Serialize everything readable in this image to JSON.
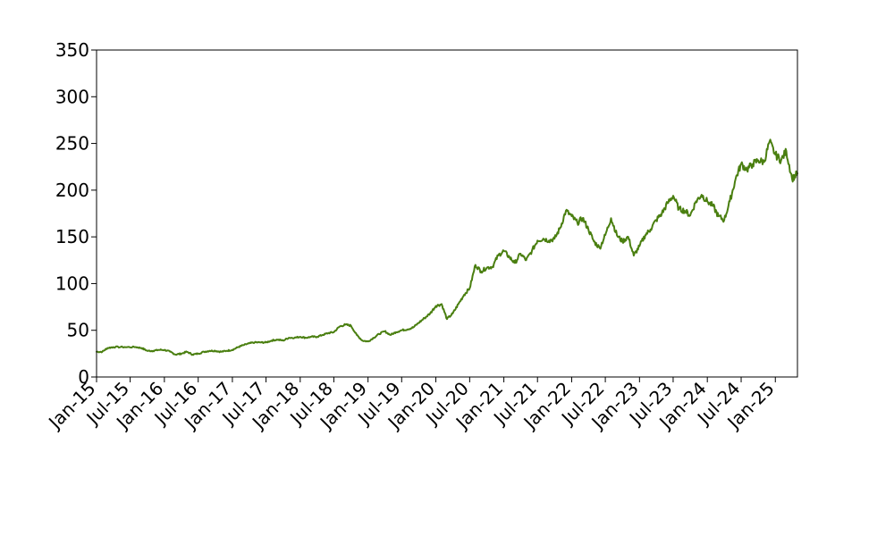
{
  "chart_data": {
    "type": "line",
    "title": "",
    "xlabel": "",
    "ylabel": "",
    "x_range": [
      "2015-01-01",
      "2025-04-30"
    ],
    "ylim": [
      0,
      350
    ],
    "y_ticks": [
      0,
      50,
      100,
      150,
      200,
      250,
      300,
      350
    ],
    "x_ticks": [
      {
        "date": "2015-01-01",
        "label": "Jan-15"
      },
      {
        "date": "2015-07-01",
        "label": "Jul-15"
      },
      {
        "date": "2016-01-01",
        "label": "Jan-16"
      },
      {
        "date": "2016-07-01",
        "label": "Jul-16"
      },
      {
        "date": "2017-01-01",
        "label": "Jan-17"
      },
      {
        "date": "2017-07-01",
        "label": "Jul-17"
      },
      {
        "date": "2018-01-01",
        "label": "Jan-18"
      },
      {
        "date": "2018-07-01",
        "label": "Jul-18"
      },
      {
        "date": "2019-01-01",
        "label": "Jan-19"
      },
      {
        "date": "2019-07-01",
        "label": "Jul-19"
      },
      {
        "date": "2020-01-01",
        "label": "Jan-20"
      },
      {
        "date": "2020-07-01",
        "label": "Jul-20"
      },
      {
        "date": "2021-01-01",
        "label": "Jan-21"
      },
      {
        "date": "2021-07-01",
        "label": "Jul-21"
      },
      {
        "date": "2022-01-01",
        "label": "Jan-22"
      },
      {
        "date": "2022-07-01",
        "label": "Jul-22"
      },
      {
        "date": "2023-01-01",
        "label": "Jan-23"
      },
      {
        "date": "2023-07-01",
        "label": "Jul-23"
      },
      {
        "date": "2024-01-01",
        "label": "Jan-24"
      },
      {
        "date": "2024-07-01",
        "label": "Jul-24"
      },
      {
        "date": "2025-01-01",
        "label": "Jan-25"
      }
    ],
    "grid": false,
    "legend": "none",
    "series": [
      {
        "color": "#4a7f10",
        "points": [
          [
            "2015-01-01",
            27
          ],
          [
            "2015-02-01",
            27
          ],
          [
            "2015-03-01",
            31
          ],
          [
            "2015-04-01",
            32
          ],
          [
            "2015-06-01",
            32
          ],
          [
            "2015-08-01",
            32
          ],
          [
            "2015-09-01",
            31
          ],
          [
            "2015-10-01",
            28
          ],
          [
            "2015-11-01",
            28
          ],
          [
            "2015-12-01",
            29
          ],
          [
            "2016-01-01",
            29
          ],
          [
            "2016-02-01",
            27
          ],
          [
            "2016-03-01",
            24
          ],
          [
            "2016-04-01",
            25
          ],
          [
            "2016-05-01",
            27
          ],
          [
            "2016-06-01",
            24
          ],
          [
            "2016-07-01",
            25
          ],
          [
            "2016-08-01",
            27
          ],
          [
            "2016-09-01",
            28
          ],
          [
            "2016-10-01",
            28
          ],
          [
            "2016-11-01",
            27
          ],
          [
            "2016-12-01",
            28
          ],
          [
            "2017-01-01",
            29
          ],
          [
            "2017-02-01",
            32
          ],
          [
            "2017-03-01",
            34
          ],
          [
            "2017-04-01",
            36
          ],
          [
            "2017-05-01",
            37
          ],
          [
            "2017-06-01",
            37
          ],
          [
            "2017-07-01",
            37
          ],
          [
            "2017-08-01",
            39
          ],
          [
            "2017-09-01",
            40
          ],
          [
            "2017-10-01",
            39
          ],
          [
            "2017-11-01",
            42
          ],
          [
            "2017-12-01",
            42
          ],
          [
            "2018-01-01",
            43
          ],
          [
            "2018-02-01",
            42
          ],
          [
            "2018-03-01",
            43
          ],
          [
            "2018-04-01",
            43
          ],
          [
            "2018-05-01",
            45
          ],
          [
            "2018-06-01",
            47
          ],
          [
            "2018-07-01",
            48
          ],
          [
            "2018-08-01",
            54
          ],
          [
            "2018-09-01",
            56
          ],
          [
            "2018-10-01",
            55
          ],
          [
            "2018-11-01",
            45
          ],
          [
            "2018-12-01",
            39
          ],
          [
            "2019-01-01",
            38
          ],
          [
            "2019-02-01",
            42
          ],
          [
            "2019-03-01",
            46
          ],
          [
            "2019-04-01",
            49
          ],
          [
            "2019-05-01",
            45
          ],
          [
            "2019-06-01",
            48
          ],
          [
            "2019-07-01",
            50
          ],
          [
            "2019-08-01",
            51
          ],
          [
            "2019-09-01",
            53
          ],
          [
            "2019-10-01",
            58
          ],
          [
            "2019-11-01",
            63
          ],
          [
            "2019-12-01",
            68
          ],
          [
            "2020-01-01",
            76
          ],
          [
            "2020-02-01",
            78
          ],
          [
            "2020-03-01",
            62
          ],
          [
            "2020-04-01",
            68
          ],
          [
            "2020-05-01",
            78
          ],
          [
            "2020-06-01",
            88
          ],
          [
            "2020-07-01",
            95
          ],
          [
            "2020-08-01",
            120
          ],
          [
            "2020-09-01",
            113
          ],
          [
            "2020-10-01",
            117
          ],
          [
            "2020-11-01",
            118
          ],
          [
            "2020-12-01",
            130
          ],
          [
            "2021-01-01",
            135
          ],
          [
            "2021-02-01",
            128
          ],
          [
            "2021-03-01",
            122
          ],
          [
            "2021-04-01",
            132
          ],
          [
            "2021-05-01",
            125
          ],
          [
            "2021-06-01",
            135
          ],
          [
            "2021-07-01",
            146
          ],
          [
            "2021-08-01",
            148
          ],
          [
            "2021-09-01",
            146
          ],
          [
            "2021-10-01",
            148
          ],
          [
            "2021-11-01",
            160
          ],
          [
            "2021-12-01",
            178
          ],
          [
            "2022-01-01",
            172
          ],
          [
            "2022-02-01",
            165
          ],
          [
            "2022-03-01",
            170
          ],
          [
            "2022-04-01",
            158
          ],
          [
            "2022-05-01",
            145
          ],
          [
            "2022-06-01",
            138
          ],
          [
            "2022-07-01",
            152
          ],
          [
            "2022-08-01",
            170
          ],
          [
            "2022-09-01",
            152
          ],
          [
            "2022-10-01",
            145
          ],
          [
            "2022-11-01",
            150
          ],
          [
            "2022-12-01",
            130
          ],
          [
            "2023-01-01",
            140
          ],
          [
            "2023-02-01",
            152
          ],
          [
            "2023-03-01",
            158
          ],
          [
            "2023-04-01",
            168
          ],
          [
            "2023-05-01",
            175
          ],
          [
            "2023-06-01",
            186
          ],
          [
            "2023-07-01",
            194
          ],
          [
            "2023-08-01",
            180
          ],
          [
            "2023-09-01",
            178
          ],
          [
            "2023-10-01",
            173
          ],
          [
            "2023-11-01",
            188
          ],
          [
            "2023-12-01",
            195
          ],
          [
            "2024-01-01",
            188
          ],
          [
            "2024-02-01",
            183
          ],
          [
            "2024-03-01",
            172
          ],
          [
            "2024-04-01",
            168
          ],
          [
            "2024-05-01",
            188
          ],
          [
            "2024-06-01",
            212
          ],
          [
            "2024-07-01",
            228
          ],
          [
            "2024-08-01",
            222
          ],
          [
            "2024-09-01",
            228
          ],
          [
            "2024-10-01",
            232
          ],
          [
            "2024-11-01",
            230
          ],
          [
            "2024-12-01",
            252
          ],
          [
            "2025-01-01",
            238
          ],
          [
            "2025-02-01",
            232
          ],
          [
            "2025-03-01",
            242
          ],
          [
            "2025-04-01",
            212
          ],
          [
            "2025-04-30",
            218
          ]
        ]
      }
    ]
  }
}
